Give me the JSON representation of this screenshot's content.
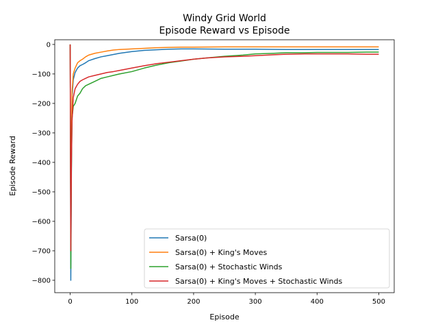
{
  "chart_data": {
    "type": "line",
    "title_lines": [
      "Windy Grid World",
      "Episode Reward vs Episode"
    ],
    "xlabel": "Episode",
    "ylabel": "Episode Reward",
    "xlim": [
      -25,
      525
    ],
    "ylim": [
      -842,
      16
    ],
    "xticks": [
      0,
      100,
      200,
      300,
      400,
      500
    ],
    "yticks": [
      0,
      -100,
      -200,
      -300,
      -400,
      -500,
      -600,
      -700,
      -800
    ],
    "grid": false,
    "legend_position": "lower right",
    "series": [
      {
        "name": "Sarsa(0)",
        "color": "#1f77b4",
        "x": [
          0,
          1,
          2,
          3,
          5,
          8,
          12,
          16,
          20,
          25,
          30,
          40,
          50,
          60,
          70,
          80,
          100,
          120,
          140,
          160,
          180,
          200,
          250,
          300,
          350,
          400,
          450,
          500
        ],
        "y": [
          0,
          -800,
          -420,
          -180,
          -120,
          -95,
          -80,
          -72,
          -68,
          -62,
          -55,
          -48,
          -42,
          -38,
          -34,
          -30,
          -24,
          -20,
          -18,
          -16,
          -15,
          -15,
          -16,
          -16,
          -17,
          -17,
          -17,
          -17
        ]
      },
      {
        "name": "Sarsa(0) + King's Moves",
        "color": "#ff7f0e",
        "x": [
          0,
          1,
          2,
          3,
          5,
          8,
          12,
          16,
          20,
          25,
          30,
          40,
          50,
          60,
          70,
          80,
          100,
          120,
          140,
          160,
          180,
          200,
          250,
          300,
          350,
          400,
          450,
          500
        ],
        "y": [
          0,
          -640,
          -330,
          -160,
          -100,
          -80,
          -62,
          -55,
          -50,
          -42,
          -36,
          -30,
          -26,
          -22,
          -19,
          -17,
          -15,
          -13,
          -11,
          -10,
          -9,
          -9,
          -8,
          -8,
          -8,
          -8,
          -8,
          -8
        ]
      },
      {
        "name": "Sarsa(0) + Stochastic Winds",
        "color": "#2ca02c",
        "x": [
          0,
          1,
          2,
          3,
          5,
          8,
          12,
          16,
          20,
          25,
          30,
          40,
          50,
          60,
          70,
          80,
          100,
          120,
          140,
          160,
          180,
          200,
          220,
          250,
          280,
          300,
          330,
          350,
          380,
          400,
          430,
          450,
          480,
          500
        ],
        "y": [
          0,
          -760,
          -420,
          -250,
          -210,
          -200,
          -175,
          -165,
          -150,
          -140,
          -135,
          -125,
          -115,
          -110,
          -105,
          -100,
          -92,
          -80,
          -70,
          -62,
          -56,
          -50,
          -46,
          -40,
          -36,
          -32,
          -30,
          -28,
          -28,
          -27,
          -27,
          -27,
          -26,
          -26
        ]
      },
      {
        "name": "Sarsa(0) + King's Moves + Stochastic Winds",
        "color": "#d62728",
        "x": [
          0,
          1,
          2,
          3,
          5,
          8,
          12,
          16,
          20,
          25,
          30,
          40,
          50,
          60,
          70,
          80,
          100,
          120,
          140,
          160,
          180,
          200,
          220,
          250,
          280,
          300,
          330,
          350,
          380,
          400,
          430,
          450,
          480,
          500
        ],
        "y": [
          0,
          -700,
          -400,
          -260,
          -180,
          -150,
          -135,
          -125,
          -120,
          -115,
          -110,
          -105,
          -100,
          -95,
          -92,
          -88,
          -80,
          -72,
          -65,
          -60,
          -55,
          -50,
          -46,
          -42,
          -40,
          -38,
          -35,
          -33,
          -32,
          -32,
          -32,
          -32,
          -33,
          -33
        ]
      }
    ]
  }
}
